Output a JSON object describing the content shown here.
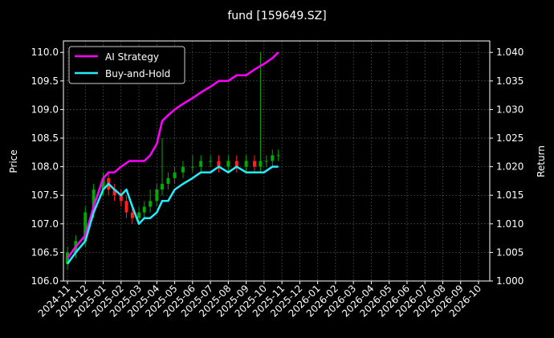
{
  "chart_data": {
    "type": "line",
    "title": "fund [159649.SZ]",
    "ylabel_left": "Price",
    "ylabel_right": "Return",
    "ylim_left": [
      106.0,
      110.2
    ],
    "ylim_right": [
      1.0,
      1.042
    ],
    "yticks_left": [
      "106.0",
      "106.5",
      "107.0",
      "107.5",
      "108.0",
      "108.5",
      "109.0",
      "109.5",
      "110.0"
    ],
    "yticks_right": [
      "1.000",
      "1.005",
      "1.010",
      "1.015",
      "1.020",
      "1.025",
      "1.030",
      "1.035",
      "1.040"
    ],
    "x_ticks": [
      "2024-11",
      "2024-12",
      "2025-01",
      "2025-02",
      "2025-03",
      "2025-04",
      "2025-05",
      "2025-06",
      "2025-07",
      "2025-08",
      "2025-09",
      "2025-10",
      "2025-11",
      "2025-12",
      "2026-01",
      "2026-02",
      "2026-03",
      "2026-04",
      "2026-05",
      "2026-06",
      "2026-07",
      "2026-08",
      "2026-09",
      "2026-10"
    ],
    "grid": true,
    "legend_position": "top-left",
    "series": [
      {
        "name": "AI Strategy",
        "color": "#ff00ff",
        "axis": "right",
        "x": [
          "2024-11-01",
          "2024-11-15",
          "2024-12-01",
          "2024-12-15",
          "2025-01-01",
          "2025-01-10",
          "2025-01-20",
          "2025-02-01",
          "2025-02-15",
          "2025-03-01",
          "2025-03-10",
          "2025-03-20",
          "2025-04-01",
          "2025-04-10",
          "2025-04-20",
          "2025-05-01",
          "2025-05-15",
          "2025-06-01",
          "2025-06-15",
          "2025-07-01",
          "2025-07-15",
          "2025-08-01",
          "2025-08-15",
          "2025-09-01",
          "2025-09-15",
          "2025-10-01",
          "2025-10-15",
          "2025-10-25"
        ],
        "values": [
          1.004,
          1.006,
          1.008,
          1.013,
          1.018,
          1.019,
          1.019,
          1.02,
          1.021,
          1.021,
          1.021,
          1.022,
          1.024,
          1.028,
          1.029,
          1.03,
          1.031,
          1.032,
          1.033,
          1.034,
          1.035,
          1.035,
          1.036,
          1.036,
          1.037,
          1.038,
          1.039,
          1.04
        ]
      },
      {
        "name": "Buy-and-Hold",
        "color": "#22eeff",
        "axis": "right",
        "x": [
          "2024-11-01",
          "2024-11-15",
          "2024-12-01",
          "2024-12-15",
          "2025-01-01",
          "2025-01-10",
          "2025-01-20",
          "2025-02-01",
          "2025-02-10",
          "2025-02-20",
          "2025-03-01",
          "2025-03-10",
          "2025-03-20",
          "2025-04-01",
          "2025-04-10",
          "2025-04-20",
          "2025-05-01",
          "2025-05-15",
          "2025-06-01",
          "2025-06-15",
          "2025-07-01",
          "2025-07-15",
          "2025-08-01",
          "2025-08-15",
          "2025-09-01",
          "2025-09-15",
          "2025-10-01",
          "2025-10-15",
          "2025-10-25"
        ],
        "values": [
          1.003,
          1.005,
          1.007,
          1.012,
          1.016,
          1.017,
          1.016,
          1.015,
          1.016,
          1.013,
          1.01,
          1.011,
          1.011,
          1.012,
          1.014,
          1.014,
          1.016,
          1.017,
          1.018,
          1.019,
          1.019,
          1.02,
          1.019,
          1.02,
          1.019,
          1.019,
          1.019,
          1.02,
          1.02
        ]
      }
    ],
    "candles": {
      "axis": "left",
      "up_color": "#00aa00",
      "down_color": "#ff2020",
      "x": [
        "2024-11-01",
        "2024-11-15",
        "2024-12-01",
        "2024-12-15",
        "2025-01-01",
        "2025-01-10",
        "2025-01-20",
        "2025-02-01",
        "2025-02-10",
        "2025-02-20",
        "2025-03-01",
        "2025-03-10",
        "2025-03-20",
        "2025-04-01",
        "2025-04-10",
        "2025-04-20",
        "2025-05-01",
        "2025-05-15",
        "2025-06-01",
        "2025-06-15",
        "2025-07-01",
        "2025-07-15",
        "2025-08-01",
        "2025-08-15",
        "2025-09-01",
        "2025-09-15",
        "2025-09-25",
        "2025-10-05",
        "2025-10-15",
        "2025-10-25"
      ],
      "open": [
        106.3,
        106.5,
        106.7,
        107.2,
        107.6,
        107.8,
        107.6,
        107.5,
        107.4,
        107.2,
        107.1,
        107.2,
        107.3,
        107.4,
        107.6,
        107.7,
        107.8,
        107.9,
        108.0,
        108.0,
        108.1,
        108.1,
        108.0,
        108.1,
        108.0,
        108.1,
        108.0,
        108.1,
        108.1,
        108.2
      ],
      "close": [
        106.5,
        106.7,
        107.2,
        107.6,
        107.8,
        107.6,
        107.5,
        107.4,
        107.2,
        107.1,
        107.2,
        107.3,
        107.4,
        107.6,
        107.7,
        107.8,
        107.9,
        108.0,
        108.0,
        108.1,
        108.1,
        108.0,
        108.1,
        108.0,
        108.1,
        108.0,
        108.1,
        108.1,
        108.2,
        108.2
      ],
      "high": [
        106.6,
        106.8,
        107.3,
        107.7,
        107.9,
        107.9,
        107.7,
        107.6,
        107.5,
        107.3,
        107.3,
        107.4,
        107.6,
        107.7,
        108.5,
        107.9,
        108.0,
        108.1,
        108.2,
        108.2,
        108.2,
        108.2,
        108.2,
        108.2,
        108.2,
        108.2,
        110.0,
        108.2,
        108.3,
        108.3
      ],
      "low": [
        106.2,
        106.4,
        106.6,
        107.1,
        107.5,
        107.5,
        107.4,
        107.3,
        107.1,
        107.0,
        107.0,
        107.1,
        107.2,
        107.3,
        107.5,
        107.6,
        107.7,
        107.8,
        107.9,
        107.9,
        108.0,
        107.9,
        107.9,
        107.9,
        107.9,
        107.9,
        107.9,
        108.0,
        108.0,
        108.1
      ]
    }
  }
}
